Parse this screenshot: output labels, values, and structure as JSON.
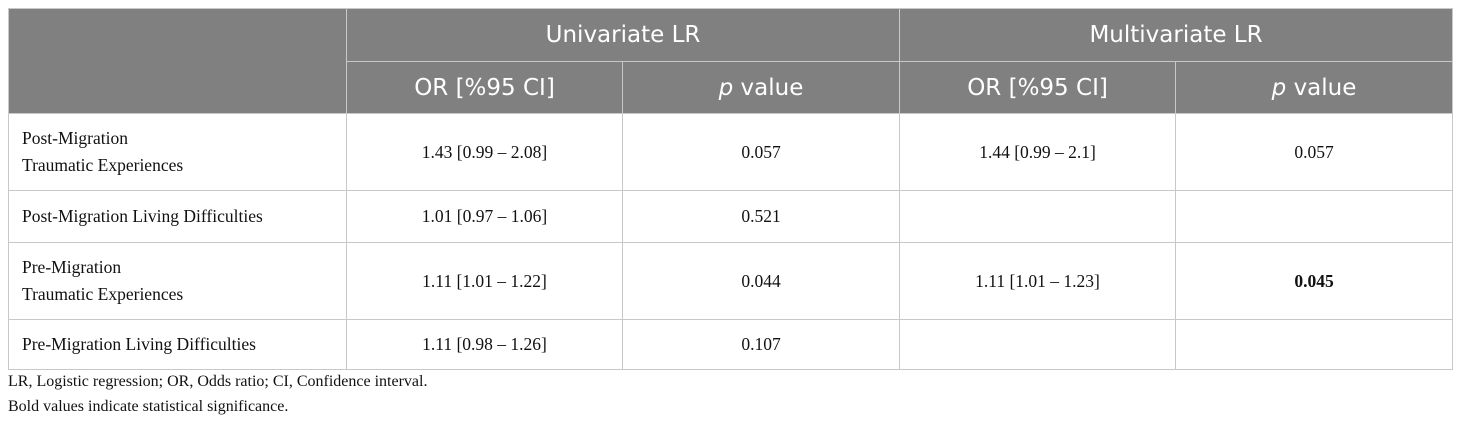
{
  "table": {
    "groups": [
      {
        "text": "Univariate LR",
        "span": 2
      },
      {
        "text": "Multivariate LR",
        "span": 2
      }
    ],
    "columns": [
      {
        "text": "OR [%95 CI]"
      },
      {
        "em": "p",
        "text": "value"
      },
      {
        "text": "OR [%95 CI]"
      },
      {
        "em": "p",
        "text": "value"
      }
    ],
    "rows": [
      {
        "label": [
          "Post-Migration",
          "Traumatic Experiences"
        ],
        "cells": [
          "1.43 [0.99 – 2.08]",
          "0.057",
          "1.44 [0.99 – 2.1]",
          "0.057"
        ]
      },
      {
        "label": [
          "Post-Migration Living Difficulties"
        ],
        "cells": [
          "1.01 [0.97 – 1.06]",
          "0.521",
          null,
          null
        ]
      },
      {
        "label": [
          "Pre-Migration",
          "Traumatic Experiences"
        ],
        "cells": [
          "1.11 [1.01 – 1.22]",
          "0.044",
          "1.11 [1.01 – 1.23]",
          "0.045"
        ],
        "bold": [
          3
        ]
      },
      {
        "label": [
          "Pre-Migration Living Difficulties"
        ],
        "cells": [
          "1.11 [0.98 – 1.26]",
          "0.107",
          null,
          null
        ]
      }
    ]
  },
  "notes": [
    "LR, Logistic regression; OR, Odds ratio; CI, Confidence interval.",
    "Bold values indicate statistical significance."
  ]
}
